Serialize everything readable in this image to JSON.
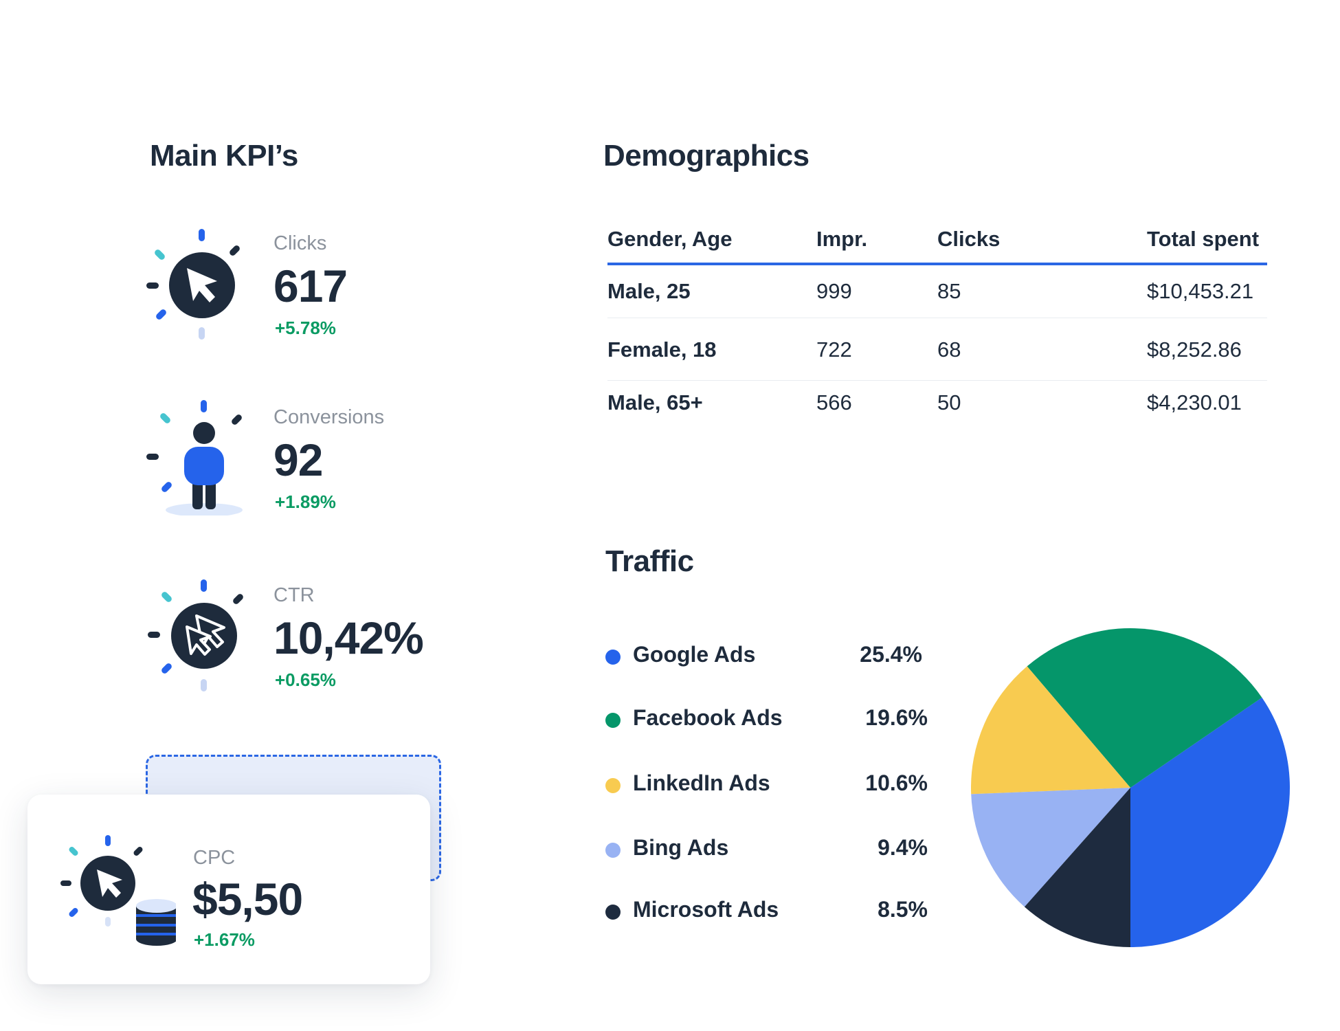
{
  "kpi_section": {
    "title": "Main KPI’s",
    "items": [
      {
        "label": "Clicks",
        "value": "617",
        "delta": "+5.78%"
      },
      {
        "label": "Conversions",
        "value": "92",
        "delta": "+1.89%"
      },
      {
        "label": "CTR",
        "value": "10,42%",
        "delta": "+0.65%"
      }
    ],
    "cpc": {
      "label": "CPC",
      "value": "$5,50",
      "delta": "+1.67%"
    }
  },
  "demographics": {
    "title": "Demographics",
    "columns": [
      "Gender, Age",
      "Impr.",
      "Clicks",
      "Total spent"
    ],
    "rows": [
      [
        "Male, 25",
        "999",
        "85",
        "$10,453.21"
      ],
      [
        "Female, 18",
        "722",
        "68",
        "$8,252.86"
      ],
      [
        "Male, 65+",
        "566",
        "50",
        "$4,230.01"
      ]
    ],
    "accent_color": "#2b67e4"
  },
  "traffic": {
    "title": "Traffic",
    "legend": [
      {
        "label": "Google Ads",
        "pct": "25.4%",
        "color": "#2563eb"
      },
      {
        "label": "Facebook Ads",
        "pct": "19.6%",
        "color": "#05966a"
      },
      {
        "label": "LinkedIn Ads",
        "pct": "10.6%",
        "color": "#f8cb50"
      },
      {
        "label": "Bing Ads",
        "pct": "9.4%",
        "color": "#98b2f3"
      },
      {
        "label": "Microsoft Ads",
        "pct": "8.5%",
        "color": "#1e2b3f"
      }
    ]
  },
  "chart_data": {
    "type": "pie",
    "categories": [
      "Google Ads",
      "Facebook Ads",
      "LinkedIn Ads",
      "Bing Ads",
      "Microsoft Ads"
    ],
    "values": [
      25.4,
      19.6,
      10.6,
      9.4,
      8.5
    ],
    "colors": [
      "#2563eb",
      "#05966a",
      "#f8cb50",
      "#98b2f3",
      "#1e2b3f"
    ],
    "title": "Traffic",
    "legend_position": "left"
  }
}
